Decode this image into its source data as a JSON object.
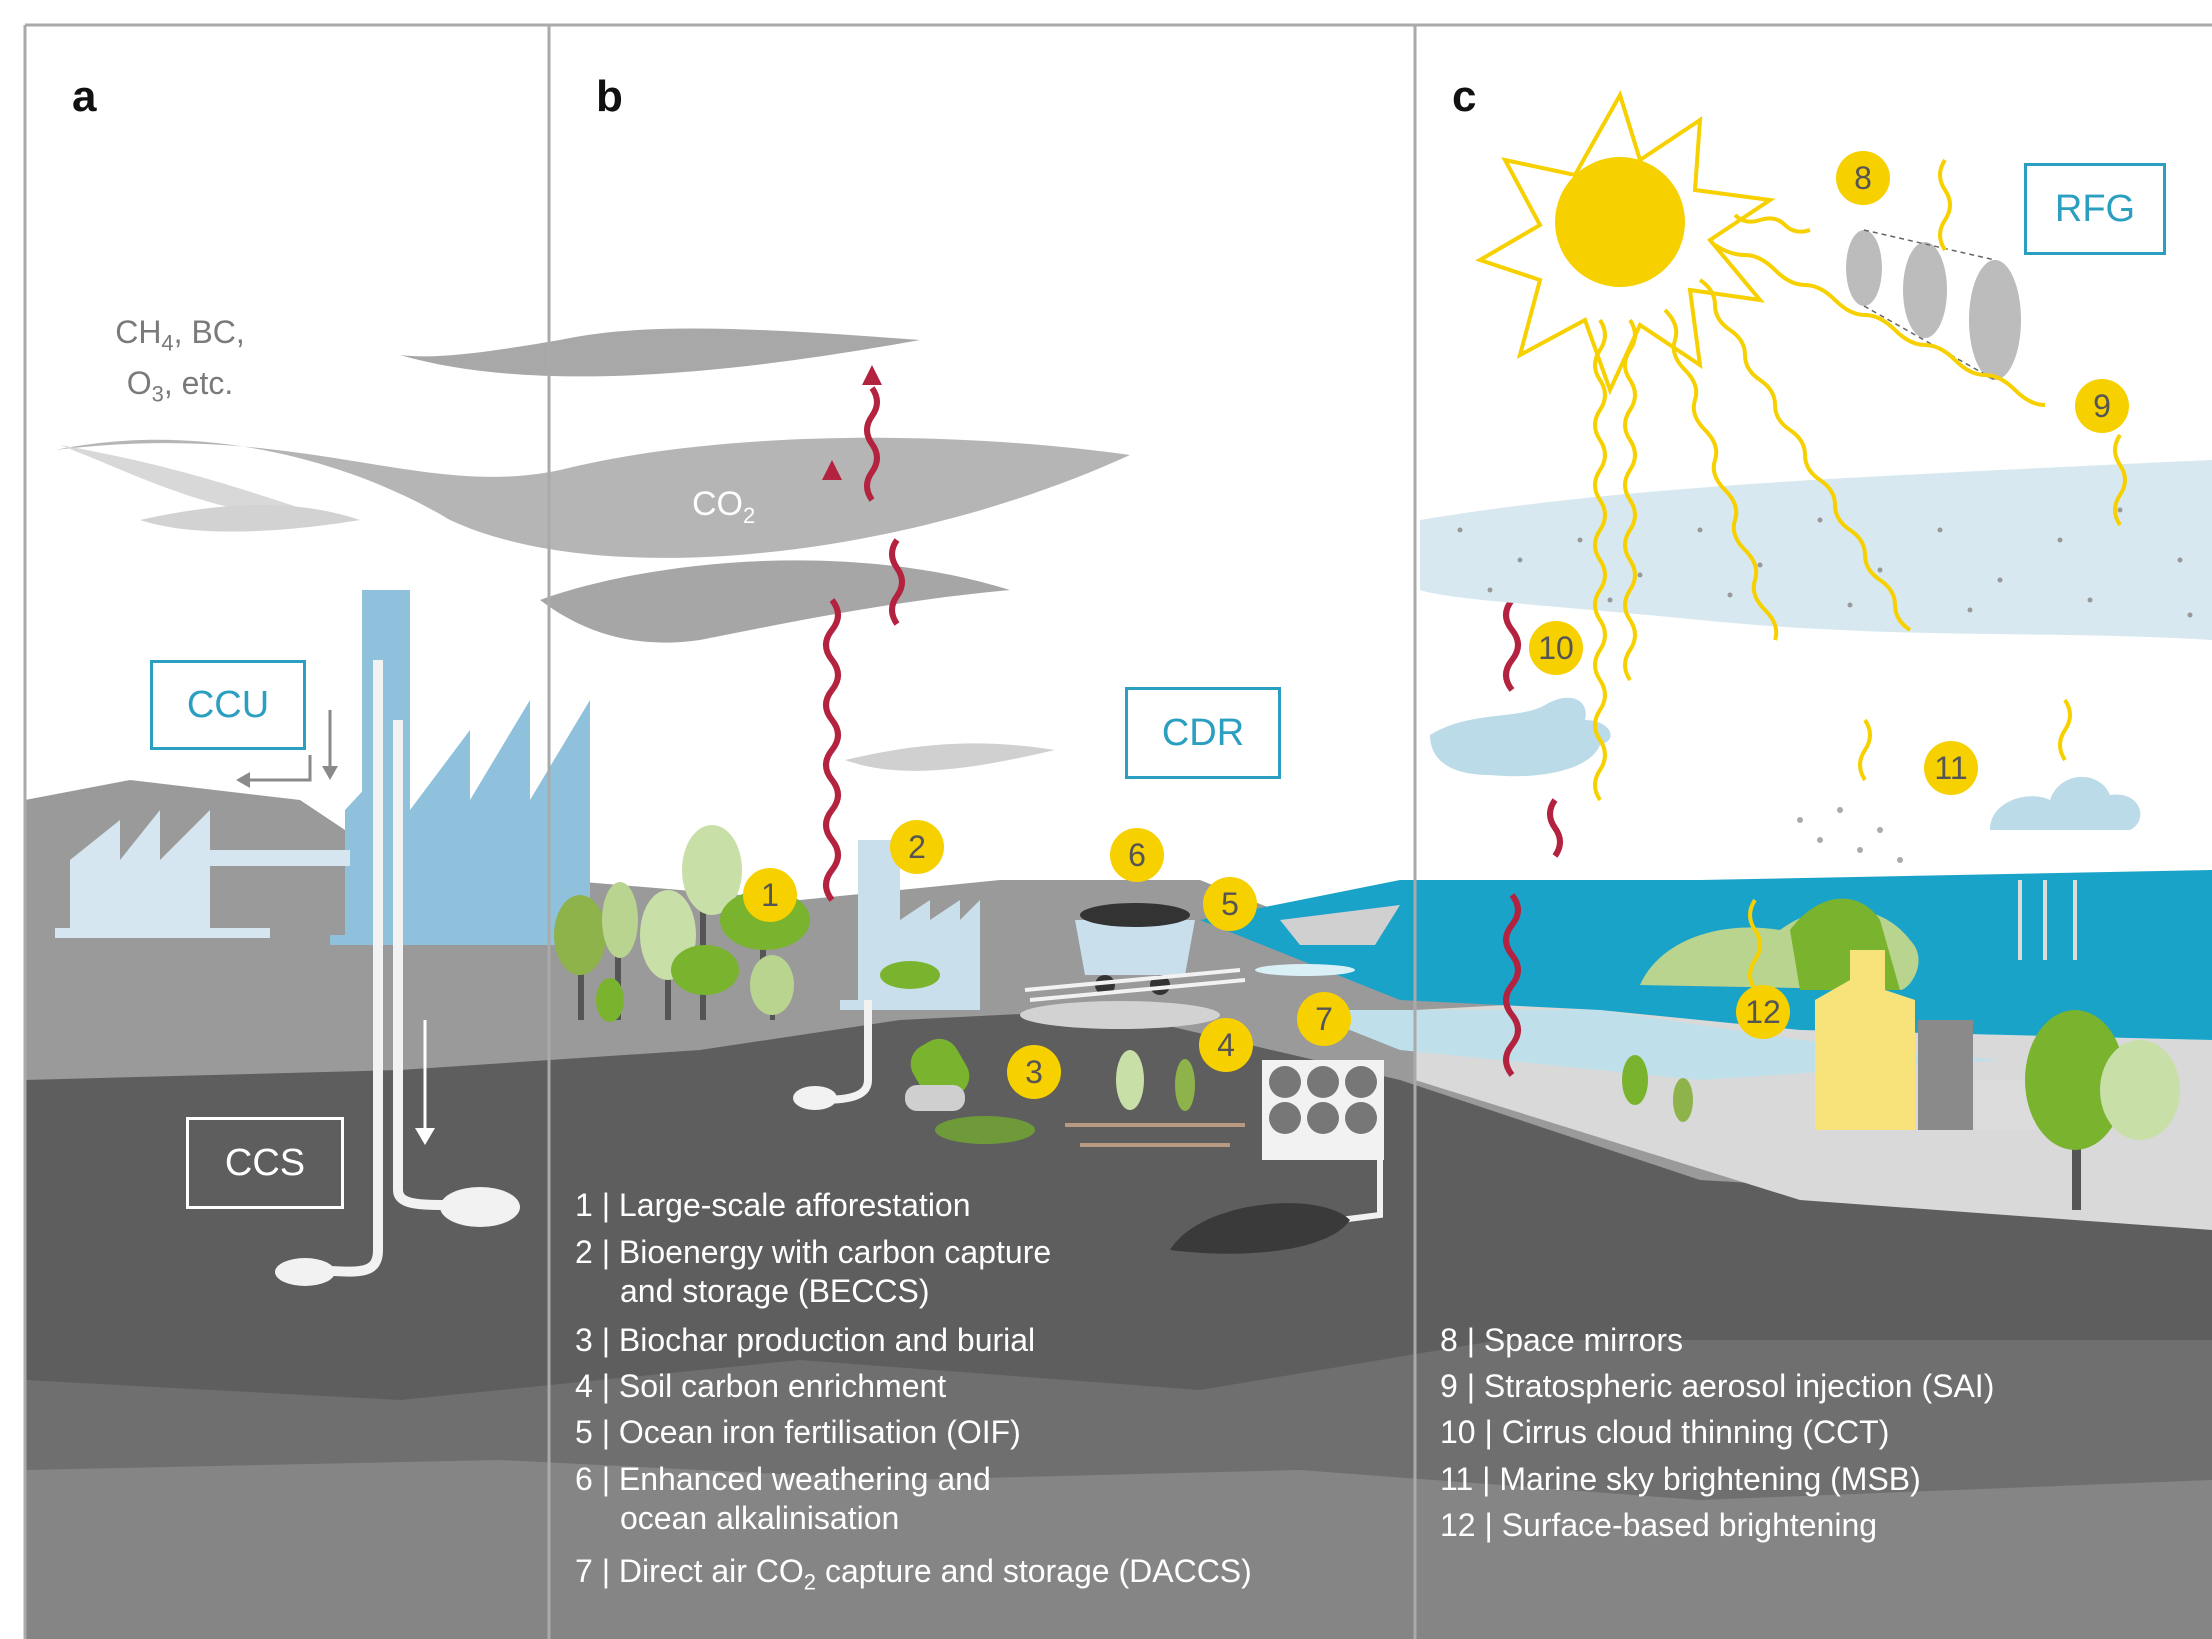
{
  "panels": {
    "a": {
      "letter": "a"
    },
    "b": {
      "letter": "b"
    },
    "c": {
      "letter": "c"
    }
  },
  "labels": {
    "ccu": "CCU",
    "ccs": "CCS",
    "cdr": "CDR",
    "rfg": "RFG",
    "gases_line1_a": "CH",
    "gases_line1_sub": "4",
    "gases_line1_b": ", BC,",
    "gases_line2_a": "O",
    "gases_line2_sub": "3",
    "gases_line2_b": ", etc.",
    "co2_main": "CO",
    "co2_sub": "2"
  },
  "badges": [
    "1",
    "2",
    "3",
    "4",
    "5",
    "6",
    "7",
    "8",
    "9",
    "10",
    "11",
    "12"
  ],
  "cdr_methods": [
    {
      "num": "1",
      "text": "Large-scale afforestation"
    },
    {
      "num": "2",
      "text": "Bioenergy with carbon capture"
    },
    {
      "num": "",
      "text": "and storage (BECCS)"
    },
    {
      "num": "3",
      "text": "Biochar production and burial"
    },
    {
      "num": "4",
      "text": "Soil carbon enrichment"
    },
    {
      "num": "5",
      "text": "Ocean iron fertilisation (OIF)"
    },
    {
      "num": "6",
      "text": "Enhanced weathering and"
    },
    {
      "num": "",
      "text": "ocean alkalinisation"
    },
    {
      "num": "7",
      "text": "Direct air CO"
    }
  ],
  "daccs_sub": "2",
  "daccs_rest": " capture and storage (DACCS)",
  "rfg_methods": [
    {
      "num": "8",
      "text": "Space mirrors"
    },
    {
      "num": "9",
      "text": "Stratospheric aerosol injection (SAI)"
    },
    {
      "num": "10",
      "text": "Cirrus cloud thinning (CCT)"
    },
    {
      "num": "11",
      "text": "Marine sky brightening (MSB)"
    },
    {
      "num": "12",
      "text": "Surface-based brightening"
    }
  ],
  "separator": "|",
  "colors": {
    "sun": "#f7d000",
    "accent_blue": "#2a9fc0",
    "ocean": "#1aa3c8",
    "heat_arrow": "#b3223f",
    "tree_green": "#7ab32e"
  }
}
